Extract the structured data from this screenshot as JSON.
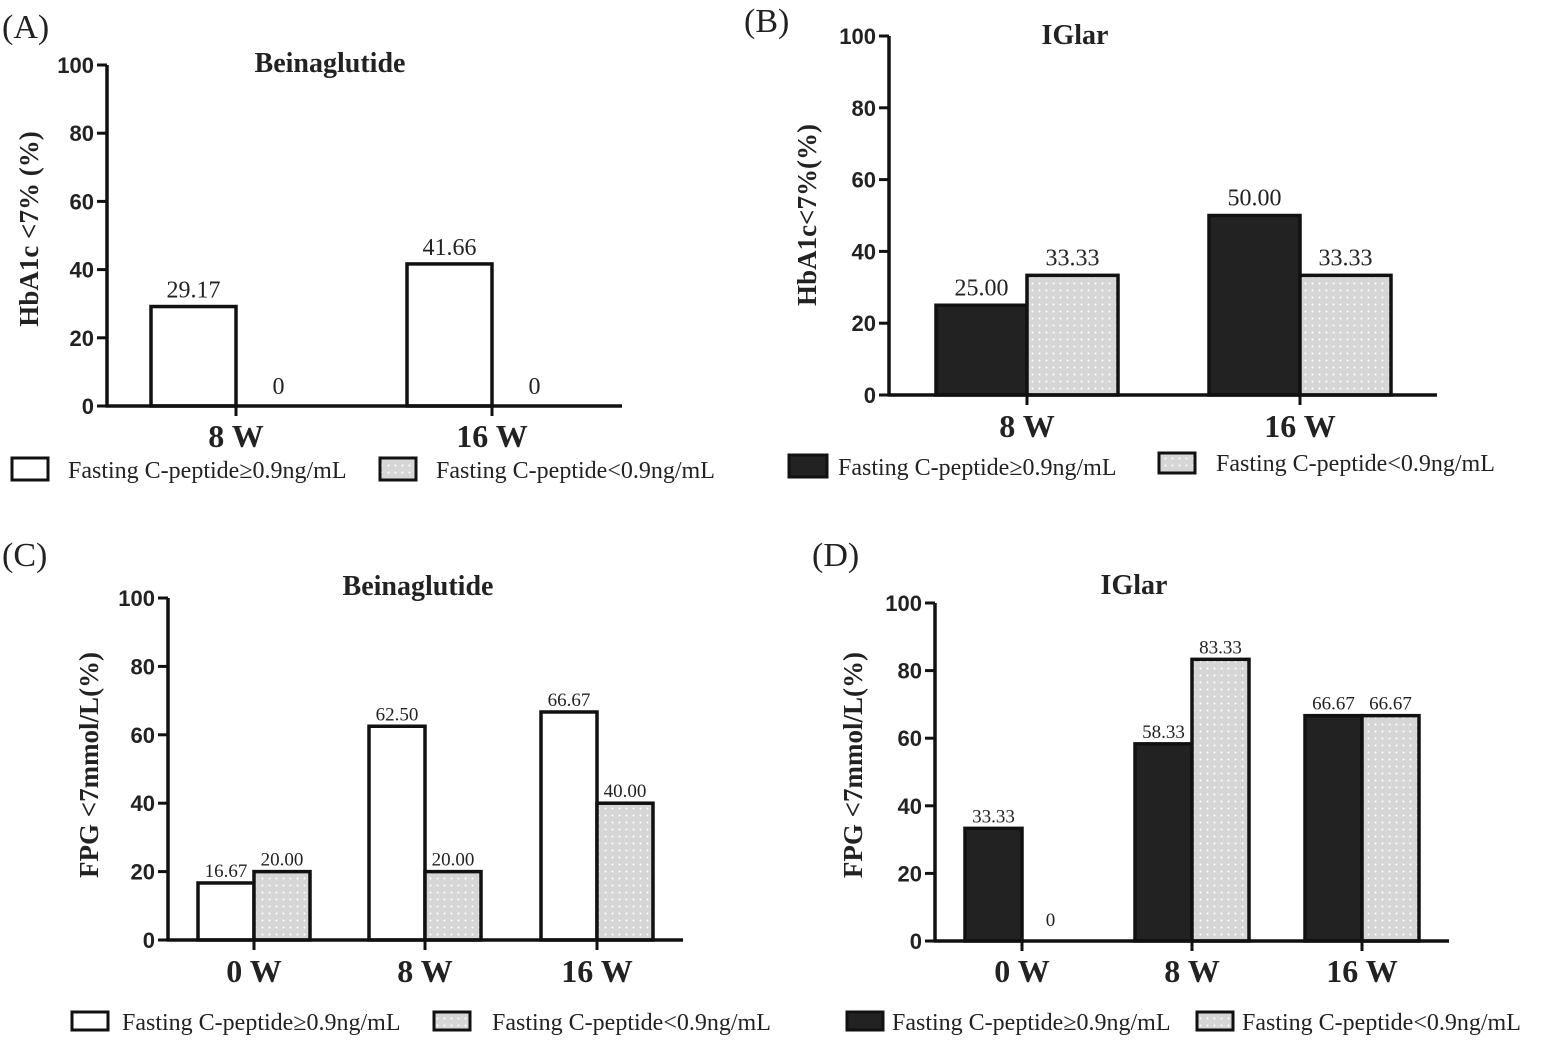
{
  "chart_data": [
    {
      "type": "bar",
      "panel_label": "(A)",
      "title": "Beinaglutide",
      "ylabel": "HbA1c <7% (%)",
      "ylim": [
        0,
        100
      ],
      "yticks": [
        "0",
        "20",
        "40",
        "60",
        "80",
        "100"
      ],
      "categories": [
        "8 W",
        "16 W"
      ],
      "series": [
        {
          "name": "Fasting C-peptide≥0.9ng/mL",
          "style": "open",
          "values": [
            29.17,
            41.66
          ],
          "labels": [
            "29.17",
            "41.66"
          ]
        },
        {
          "name": "Fasting C-peptide<0.9ng/mL",
          "style": "dotted",
          "values": [
            0,
            0
          ],
          "labels": [
            "0",
            "0"
          ]
        }
      ]
    },
    {
      "type": "bar",
      "panel_label": "(B)",
      "title": "IGlar",
      "ylabel": "HbA1c<7%(%)",
      "ylim": [
        0,
        100
      ],
      "yticks": [
        "0",
        "20",
        "40",
        "60",
        "80",
        "100"
      ],
      "categories": [
        "8 W",
        "16 W"
      ],
      "series": [
        {
          "name": "Fasting C-peptide≥0.9ng/mL",
          "style": "solid",
          "values": [
            25.0,
            50.0
          ],
          "labels": [
            "25.00",
            "50.00"
          ]
        },
        {
          "name": "Fasting C-peptide<0.9ng/mL",
          "style": "dotted",
          "values": [
            33.33,
            33.33
          ],
          "labels": [
            "33.33",
            "33.33"
          ]
        }
      ]
    },
    {
      "type": "bar",
      "panel_label": "(C)",
      "title": "Beinaglutide",
      "ylabel": "FPG <7mmol/L(%)",
      "ylim": [
        0,
        100
      ],
      "yticks": [
        "0",
        "20",
        "40",
        "60",
        "80",
        "100"
      ],
      "categories": [
        "0 W",
        "8 W",
        "16 W"
      ],
      "series": [
        {
          "name": "Fasting C-peptide≥0.9ng/mL",
          "style": "open",
          "values": [
            16.67,
            62.5,
            66.67
          ],
          "labels": [
            "16.67",
            "62.50",
            "66.67"
          ]
        },
        {
          "name": "Fasting C-peptide<0.9ng/mL",
          "style": "dotted",
          "values": [
            20.0,
            20.0,
            40.0
          ],
          "labels": [
            "20.00",
            "20.00",
            "40.00"
          ]
        }
      ]
    },
    {
      "type": "bar",
      "panel_label": "(D)",
      "title": "IGlar",
      "ylabel": "FPG <7mmol/L(%)",
      "ylim": [
        0,
        100
      ],
      "yticks": [
        "0",
        "20",
        "40",
        "60",
        "80",
        "100"
      ],
      "categories": [
        "0 W",
        "8 W",
        "16 W"
      ],
      "series": [
        {
          "name": "Fasting C-peptide≥0.9ng/mL",
          "style": "solid",
          "values": [
            33.33,
            58.33,
            66.67
          ],
          "labels": [
            "33.33",
            "58.33",
            "66.67"
          ]
        },
        {
          "name": "Fasting C-peptide<0.9ng/mL",
          "style": "dotted",
          "values": [
            0,
            83.33,
            66.67
          ],
          "labels": [
            "0",
            "83.33",
            "66.67"
          ]
        }
      ]
    }
  ],
  "colors": {
    "solid_fill": "#222222",
    "open_fill": "#ffffff",
    "dotted_fill": "#d6d6d6",
    "dot": "#ffffff",
    "stroke": "#111111"
  }
}
